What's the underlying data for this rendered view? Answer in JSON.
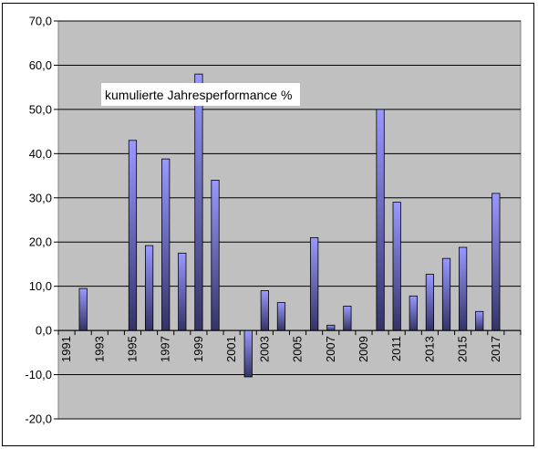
{
  "chart_data": {
    "type": "bar",
    "title": "",
    "annotation": "kumulierte Jahresperformance %",
    "xlabel": "",
    "ylabel": "",
    "ylim": [
      -20,
      70
    ],
    "y_ticks": [
      70,
      60,
      50,
      40,
      30,
      20,
      10,
      0,
      -10,
      -20
    ],
    "y_tick_labels": [
      "70,0",
      "60,0",
      "50,0",
      "40,0",
      "30,0",
      "20,0",
      "10,0",
      "0,0",
      "-10,0",
      "-20,0"
    ],
    "x_tick_labels": [
      "1991",
      "1993",
      "1995",
      "1997",
      "1999",
      "2001",
      "2003",
      "2005",
      "2007",
      "2009",
      "2011",
      "2013",
      "2015",
      "2017"
    ],
    "grid": true,
    "legend": "none",
    "colors": {
      "plot_bg": "#c0c0c0",
      "bar_top": "#9999ff",
      "bar_bottom": "#333366",
      "grid": "#000000"
    },
    "categories": [
      "1991",
      "1992",
      "1993",
      "1994",
      "1995",
      "1996",
      "1997",
      "1998",
      "1999",
      "2000",
      "2001",
      "2002",
      "2003",
      "2004",
      "2005",
      "2006",
      "2007",
      "2008",
      "2009",
      "2010",
      "2011",
      "2012",
      "2013",
      "2014",
      "2015",
      "2016",
      "2017",
      "2018"
    ],
    "series": [
      {
        "values": [
          0,
          9.5,
          0,
          0,
          43.0,
          19.2,
          38.8,
          17.5,
          58.0,
          34.0,
          0,
          -10.5,
          9.0,
          6.3,
          0,
          21.0,
          1.2,
          5.5,
          0,
          50.0,
          29.0,
          7.8,
          12.7,
          16.3,
          18.8,
          4.3,
          31.0,
          0
        ]
      }
    ]
  }
}
